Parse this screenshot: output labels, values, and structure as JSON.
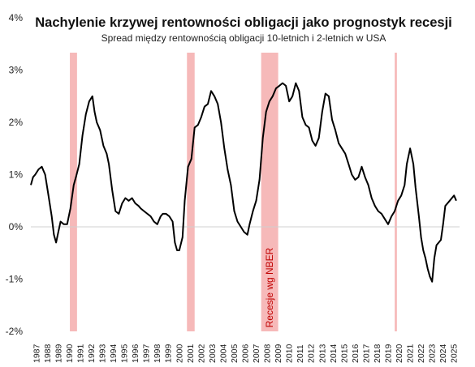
{
  "chart_data": {
    "type": "line",
    "title": "Nachylenie krzywej rentowności obligacji jako prognostyk recesji",
    "subtitle": "Spread między rentownością obligacji 10-letnich i 2-letnich w USA",
    "xlabel": "",
    "ylabel": "",
    "ylim": [
      -2,
      4
    ],
    "xlim": [
      1987,
      2026
    ],
    "y_ticks": [
      {
        "value": 4,
        "label": "4%"
      },
      {
        "value": 3,
        "label": "3%"
      },
      {
        "value": 2,
        "label": "2%"
      },
      {
        "value": 1,
        "label": "1%"
      },
      {
        "value": 0,
        "label": "0%"
      },
      {
        "value": -1,
        "label": "-1%"
      },
      {
        "value": -2,
        "label": "-2%"
      }
    ],
    "x_ticks": [
      "1987",
      "1988",
      "1989",
      "1990",
      "1991",
      "1992",
      "1993",
      "1994",
      "1995",
      "1996",
      "1997",
      "1998",
      "1999",
      "2000",
      "2001",
      "2002",
      "2003",
      "2004",
      "2005",
      "2006",
      "2007",
      "2008",
      "2009",
      "2010",
      "2011",
      "2012",
      "2013",
      "2014",
      "2015",
      "2016",
      "2017",
      "2018",
      "2019",
      "2020",
      "2021",
      "2022",
      "2023",
      "2024",
      "2025"
    ],
    "recessions": [
      {
        "start": 1990.55,
        "end": 1991.2
      },
      {
        "start": 2001.2,
        "end": 2001.9
      },
      {
        "start": 2007.95,
        "end": 2009.5
      },
      {
        "start": 2020.1,
        "end": 2020.3
      }
    ],
    "recession_label": "Recesje wg NBER",
    "series": [
      {
        "color": "#000000",
        "x": [
          1987.0,
          1987.2,
          1987.4,
          1987.7,
          1988.0,
          1988.3,
          1988.6,
          1988.9,
          1989.1,
          1989.3,
          1989.5,
          1989.7,
          1990.0,
          1990.3,
          1990.6,
          1990.9,
          1991.1,
          1991.4,
          1991.7,
          1992.0,
          1992.3,
          1992.6,
          1992.8,
          1993.0,
          1993.3,
          1993.6,
          1993.9,
          1994.1,
          1994.4,
          1994.7,
          1995.0,
          1995.3,
          1995.6,
          1995.9,
          1996.2,
          1996.5,
          1996.8,
          1997.0,
          1997.3,
          1997.6,
          1997.9,
          1998.2,
          1998.5,
          1998.8,
          1999.0,
          1999.3,
          1999.6,
          1999.9,
          2000.1,
          2000.3,
          2000.5,
          2000.8,
          2001.0,
          2001.3,
          2001.6,
          2001.9,
          2002.2,
          2002.5,
          2002.8,
          2003.1,
          2003.4,
          2003.7,
          2004.0,
          2004.3,
          2004.6,
          2004.9,
          2005.2,
          2005.5,
          2005.8,
          2006.1,
          2006.4,
          2006.7,
          2006.9,
          2007.2,
          2007.5,
          2007.8,
          2008.1,
          2008.4,
          2008.7,
          2009.0,
          2009.3,
          2009.6,
          2009.9,
          2010.2,
          2010.5,
          2010.8,
          2011.1,
          2011.4,
          2011.7,
          2012.0,
          2012.3,
          2012.6,
          2012.9,
          2013.2,
          2013.5,
          2013.8,
          2014.1,
          2014.4,
          2014.7,
          2015.0,
          2015.3,
          2015.6,
          2015.9,
          2016.2,
          2016.5,
          2016.8,
          2017.1,
          2017.4,
          2017.7,
          2018.0,
          2018.3,
          2018.6,
          2018.9,
          2019.2,
          2019.5,
          2019.8,
          2020.1,
          2020.4,
          2020.7,
          2021.0,
          2021.2,
          2021.5,
          2021.8,
          2022.0,
          2022.3,
          2022.5,
          2022.7,
          2022.9,
          2023.1,
          2023.3,
          2023.5,
          2023.7,
          2023.9,
          2024.1,
          2024.3,
          2024.5,
          2024.7,
          2024.9,
          2025.1,
          2025.3,
          2025.5,
          2025.7
        ],
        "y": [
          0.8,
          0.95,
          1.0,
          1.1,
          1.15,
          1.0,
          0.6,
          0.2,
          -0.15,
          -0.3,
          -0.1,
          0.1,
          0.05,
          0.05,
          0.35,
          0.8,
          0.95,
          1.2,
          1.75,
          2.15,
          2.4,
          2.5,
          2.2,
          2.0,
          1.85,
          1.55,
          1.4,
          1.2,
          0.7,
          0.3,
          0.25,
          0.45,
          0.55,
          0.5,
          0.55,
          0.45,
          0.4,
          0.35,
          0.3,
          0.25,
          0.2,
          0.1,
          0.05,
          0.2,
          0.25,
          0.25,
          0.2,
          0.1,
          -0.3,
          -0.45,
          -0.45,
          -0.2,
          0.5,
          1.15,
          1.3,
          1.9,
          1.95,
          2.1,
          2.3,
          2.35,
          2.6,
          2.5,
          2.35,
          2.0,
          1.5,
          1.1,
          0.8,
          0.3,
          0.1,
          0.0,
          -0.1,
          -0.15,
          0.05,
          0.3,
          0.5,
          0.9,
          1.7,
          2.2,
          2.4,
          2.5,
          2.65,
          2.7,
          2.75,
          2.7,
          2.4,
          2.5,
          2.75,
          2.6,
          2.1,
          1.95,
          1.9,
          1.65,
          1.55,
          1.7,
          2.2,
          2.55,
          2.5,
          2.05,
          1.85,
          1.6,
          1.5,
          1.4,
          1.2,
          1.0,
          0.9,
          0.95,
          1.15,
          0.95,
          0.8,
          0.55,
          0.4,
          0.3,
          0.25,
          0.15,
          0.05,
          0.2,
          0.3,
          0.5,
          0.6,
          0.8,
          1.2,
          1.5,
          1.2,
          0.75,
          0.2,
          -0.2,
          -0.45,
          -0.6,
          -0.8,
          -0.95,
          -1.05,
          -0.6,
          -0.35,
          -0.3,
          -0.25,
          0.05,
          0.4,
          0.45,
          0.5,
          0.55,
          0.6,
          0.5
        ]
      }
    ]
  }
}
